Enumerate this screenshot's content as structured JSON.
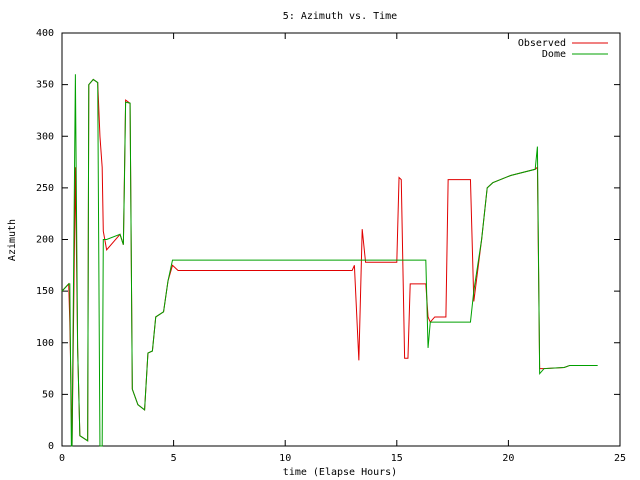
{
  "chart_data": {
    "type": "line",
    "title": "5: Azimuth vs. Time",
    "x_label": "time (Elapse Hours)",
    "y_label": "Azimuth",
    "x": [
      0,
      0.3,
      0.35,
      0.42,
      0.45,
      0.6,
      0.7,
      0.8,
      1.15,
      1.2,
      1.4,
      1.6,
      1.7,
      1.8,
      1.85,
      2.0,
      2.6,
      2.75,
      2.8,
      2.85,
      3.05,
      3.15,
      3.4,
      3.7,
      3.85,
      4.05,
      4.2,
      4.55,
      4.75,
      4.95,
      5.2,
      13.0,
      13.1,
      13.3,
      13.45,
      13.6,
      15.0,
      15.1,
      15.2,
      15.35,
      15.5,
      15.6,
      16.3,
      16.4,
      16.5,
      16.7,
      17.2,
      17.3,
      18.3,
      18.45,
      18.8,
      19.05,
      19.3,
      20.1,
      21.2,
      21.3,
      21.4,
      21.6,
      22.5,
      22.75,
      24.0
    ],
    "series": [
      {
        "name": "Observed",
        "color": "#e00000",
        "values": [
          150,
          157,
          120,
          40,
          0,
          270,
          95,
          10,
          5,
          350,
          355,
          352,
          300,
          270,
          208,
          190,
          205,
          195,
          265,
          335,
          332,
          55,
          40,
          35,
          90,
          92,
          125,
          130,
          160,
          175,
          170,
          170,
          175,
          83,
          210,
          178,
          178,
          260,
          258,
          85,
          85,
          157,
          157,
          125,
          120,
          125,
          125,
          258,
          258,
          140,
          200,
          250,
          255,
          262,
          268,
          270,
          75,
          75,
          76,
          78,
          null
        ]
      },
      {
        "name": "Dome",
        "color": "#00a000",
        "values": [
          150,
          157,
          157,
          0,
          0,
          360,
          95,
          10,
          5,
          350,
          355,
          352,
          0,
          0,
          200,
          200,
          205,
          195,
          260,
          333,
          332,
          55,
          40,
          35,
          90,
          92,
          125,
          130,
          160,
          180,
          180,
          180,
          180,
          180,
          180,
          180,
          180,
          180,
          180,
          180,
          180,
          180,
          180,
          95,
          120,
          120,
          120,
          120,
          120,
          150,
          200,
          250,
          255,
          262,
          268,
          290,
          70,
          75,
          76,
          78,
          78
        ]
      }
    ],
    "xlim": [
      0,
      25
    ],
    "xticks": [
      0,
      5,
      10,
      15,
      20,
      25
    ],
    "ylim": [
      0,
      400
    ],
    "yticks": [
      0,
      50,
      100,
      150,
      200,
      250,
      300,
      350,
      400
    ],
    "legend": "top-right",
    "grid": false
  }
}
